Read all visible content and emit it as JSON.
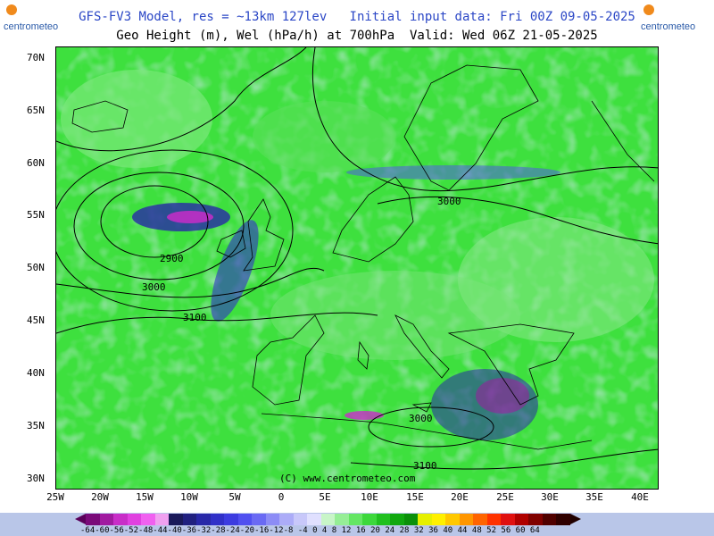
{
  "titles": {
    "line1": "GFS-FV3 Model, res = ~13km 127lev   Initial input data: Fri 00Z 09-05-2025",
    "line2": "Geo Height (m), Wel (hPa/h) at 700hPa  Valid: Wed 06Z 21-05-2025"
  },
  "axes": {
    "lat_labels": [
      "70N",
      "65N",
      "60N",
      "55N",
      "50N",
      "45N",
      "40N",
      "35N",
      "30N"
    ],
    "lon_labels": [
      "25W",
      "20W",
      "15W",
      "10W",
      "5W",
      "0",
      "5E",
      "10E",
      "15E",
      "20E",
      "25E",
      "30E",
      "35E",
      "40E"
    ]
  },
  "contour_labels": [
    "2900",
    "3000",
    "3100",
    "3000",
    "3000",
    "3100"
  ],
  "copyright": "(C) www.centrometeo.com",
  "colorbar": {
    "labels": "-64-60-56-52-48-44-40-36-32-28-24-20-16-12-8 -4  0  4  8 12 16 20 24 28 32 36 40 44 48 52 56 60 64",
    "colors": [
      "#7a0a7a",
      "#a01aa0",
      "#c82dc8",
      "#e040e0",
      "#f060f0",
      "#f0a0f0",
      "#1a1a5a",
      "#202080",
      "#2828a8",
      "#3030c8",
      "#3c3ce0",
      "#5050f0",
      "#6a6af4",
      "#8c8cf6",
      "#acacf8",
      "#c8c8fa",
      "#e0e0ff",
      "#c8f5c8",
      "#96ee96",
      "#64e664",
      "#3cd83c",
      "#20c020",
      "#10a810",
      "#0a900a",
      "#e6f000",
      "#fff000",
      "#ffc800",
      "#ff9600",
      "#ff6400",
      "#ff3200",
      "#e01010",
      "#b00000",
      "#800000",
      "#500000",
      "#300000"
    ]
  },
  "logos": {
    "left": "centrometeo",
    "right": "centrometeo"
  },
  "colors": {
    "background_field": "#3ee03e",
    "title_blue": "#2b47c6",
    "footer": "#b9c6e8"
  }
}
